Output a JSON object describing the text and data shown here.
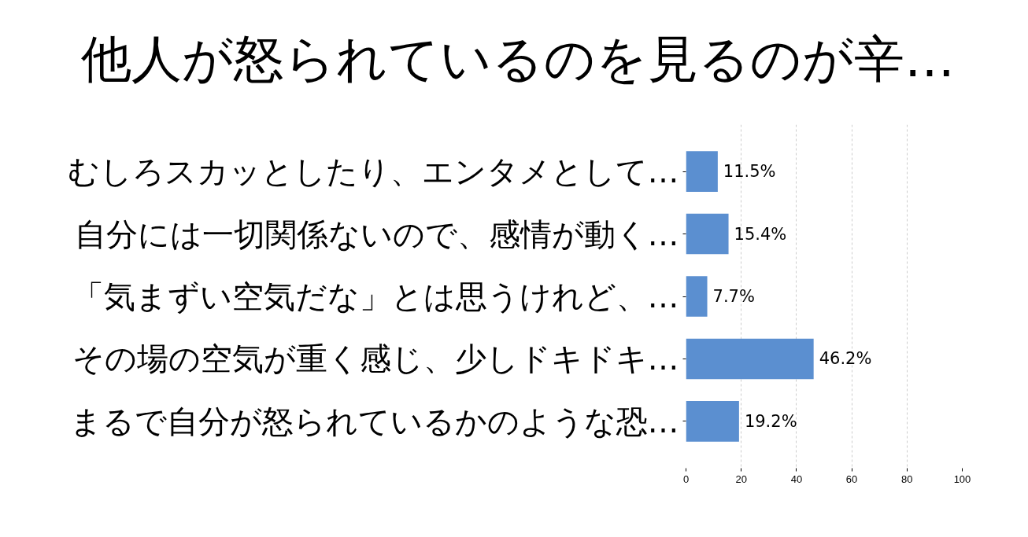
{
  "chart_data": {
    "type": "bar",
    "orientation": "horizontal",
    "title": "他人が怒られているのを見るのが辛…",
    "categories": [
      "むしろスカッとしたり、エンタメとして…",
      "自分には一切関係ないので、感情が動く…",
      "「気まずい空気だな」とは思うけれど、…",
      "その場の空気が重く感じ、少しドキドキ…",
      "まるで自分が怒られているかのような恐…"
    ],
    "values": [
      11.5,
      15.4,
      7.7,
      46.2,
      19.2
    ],
    "value_labels": [
      "11.5%",
      "15.4%",
      "7.7%",
      "46.2%",
      "19.2%"
    ],
    "color": "#5b8fd0",
    "xlim": [
      0,
      100
    ],
    "xticks": [
      0,
      20,
      40,
      60,
      80,
      100
    ],
    "grid": "x"
  }
}
